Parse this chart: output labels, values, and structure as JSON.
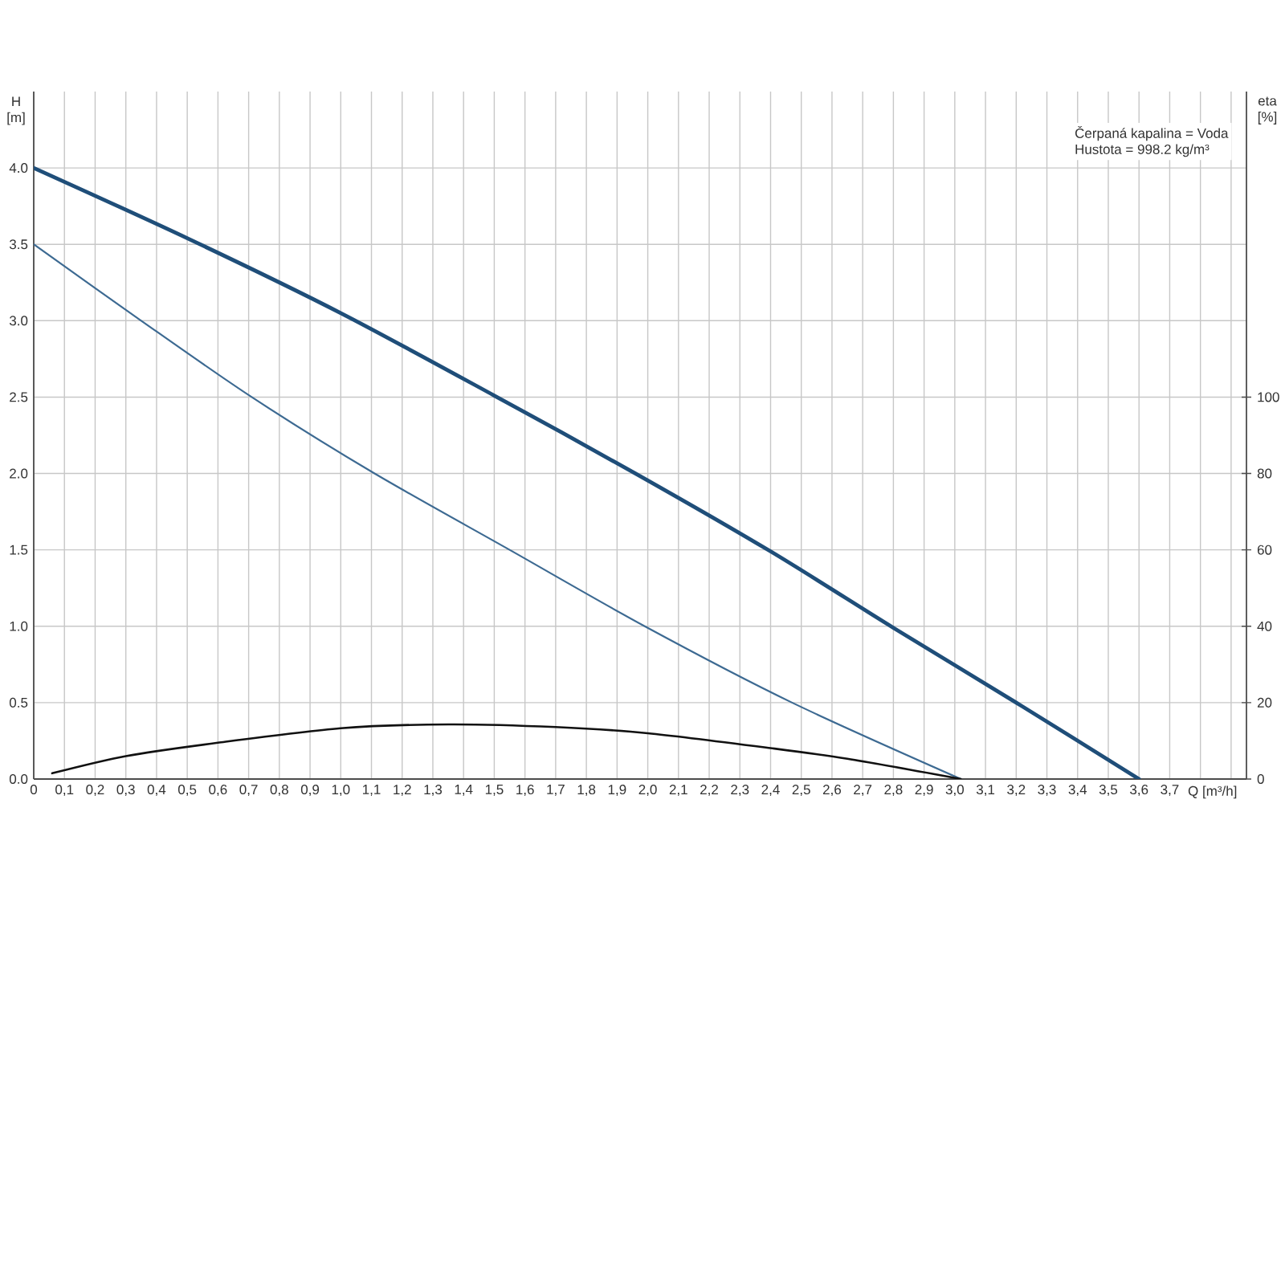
{
  "chart_data": {
    "type": "line",
    "xlabel": "Q [m³/h]",
    "ylabel": "H [m]",
    "y2label": "eta [%]",
    "annotations": [
      "Čerpaná kapalina = Voda",
      "Hustota = 998.2 kg/m³"
    ],
    "xlim": [
      0,
      3.95
    ],
    "xticks": [
      0,
      {
        "value": 0.1,
        "label": "0,1"
      },
      {
        "value": 0.2,
        "label": "0,2"
      },
      {
        "value": 0.3,
        "label": "0,3"
      },
      {
        "value": 0.4,
        "label": "0,4"
      },
      {
        "value": 0.5,
        "label": "0,5"
      },
      {
        "value": 0.6,
        "label": "0,6"
      },
      {
        "value": 0.7,
        "label": "0,7"
      },
      {
        "value": 0.8,
        "label": "0,8"
      },
      {
        "value": 0.9,
        "label": "0,9"
      },
      {
        "value": 1.0,
        "label": "1,0"
      },
      {
        "value": 1.1,
        "label": "1,1"
      },
      {
        "value": 1.2,
        "label": "1,2"
      },
      {
        "value": 1.3,
        "label": "1,3"
      },
      {
        "value": 1.4,
        "label": "1,4"
      },
      {
        "value": 1.5,
        "label": "1,5"
      },
      {
        "value": 1.6,
        "label": "1,6"
      },
      {
        "value": 1.7,
        "label": "1,7"
      },
      {
        "value": 1.8,
        "label": "1,8"
      },
      {
        "value": 1.9,
        "label": "1,9"
      },
      {
        "value": 2.0,
        "label": "2,0"
      },
      {
        "value": 2.1,
        "label": "2,1"
      },
      {
        "value": 2.2,
        "label": "2,2"
      },
      {
        "value": 2.3,
        "label": "2,3"
      },
      {
        "value": 2.4,
        "label": "2,4"
      },
      {
        "value": 2.5,
        "label": "2,5"
      },
      {
        "value": 2.6,
        "label": "2,6"
      },
      {
        "value": 2.7,
        "label": "2,7"
      },
      {
        "value": 2.8,
        "label": "2,8"
      },
      {
        "value": 2.9,
        "label": "2,9"
      },
      {
        "value": 3.0,
        "label": "3,0"
      },
      {
        "value": 3.1,
        "label": "3,1"
      },
      {
        "value": 3.2,
        "label": "3,2"
      },
      {
        "value": 3.3,
        "label": "3,3"
      },
      {
        "value": 3.4,
        "label": "3,4"
      },
      {
        "value": 3.5,
        "label": "3,5"
      },
      {
        "value": 3.6,
        "label": "3,6"
      },
      {
        "value": 3.7,
        "label": "3,7"
      },
      {
        "value": 3.8,
        "label": null
      },
      {
        "value": 3.9,
        "label": null
      }
    ],
    "ylim": [
      0,
      4.5
    ],
    "yticks": [
      {
        "value": 0,
        "label": "0.0"
      },
      0.5,
      {
        "value": 1,
        "label": "1.0"
      },
      1.5,
      {
        "value": 2,
        "label": "2.0"
      },
      2.5,
      {
        "value": 3,
        "label": "3.0"
      },
      3.5,
      {
        "value": 4,
        "label": "4.0"
      }
    ],
    "y2lim": [
      0,
      180
    ],
    "y2ticks": [
      0,
      20,
      40,
      60,
      80,
      100
    ],
    "grid": true,
    "marker": "none",
    "line_style": "solid",
    "series": [
      {
        "color": "#1f4e79",
        "x": [
          0,
          0.5,
          1.0,
          1.5,
          1.96,
          2.4,
          2.8,
          3.2,
          3.6
        ],
        "values": [
          4.0,
          3.54,
          3.05,
          2.51,
          2.0,
          1.49,
          0.99,
          0.5,
          0
        ]
      },
      {
        "color": "#3d6a92",
        "x": [
          0,
          0.35,
          0.71,
          1.11,
          1.55,
          1.99,
          2.47,
          3.02
        ],
        "values": [
          3.5,
          3.0,
          2.5,
          2.0,
          1.5,
          1.0,
          0.5,
          0
        ]
      },
      {
        "color": "#111111",
        "axis": "y2",
        "x": [
          0.06,
          0.3,
          0.6,
          1.0,
          1.35,
          1.7,
          2.0,
          2.4,
          2.65,
          3.02
        ],
        "values": [
          1.5,
          6.0,
          9.5,
          13.3,
          14.3,
          13.6,
          12.0,
          8.1,
          5.3,
          0
        ]
      }
    ]
  }
}
